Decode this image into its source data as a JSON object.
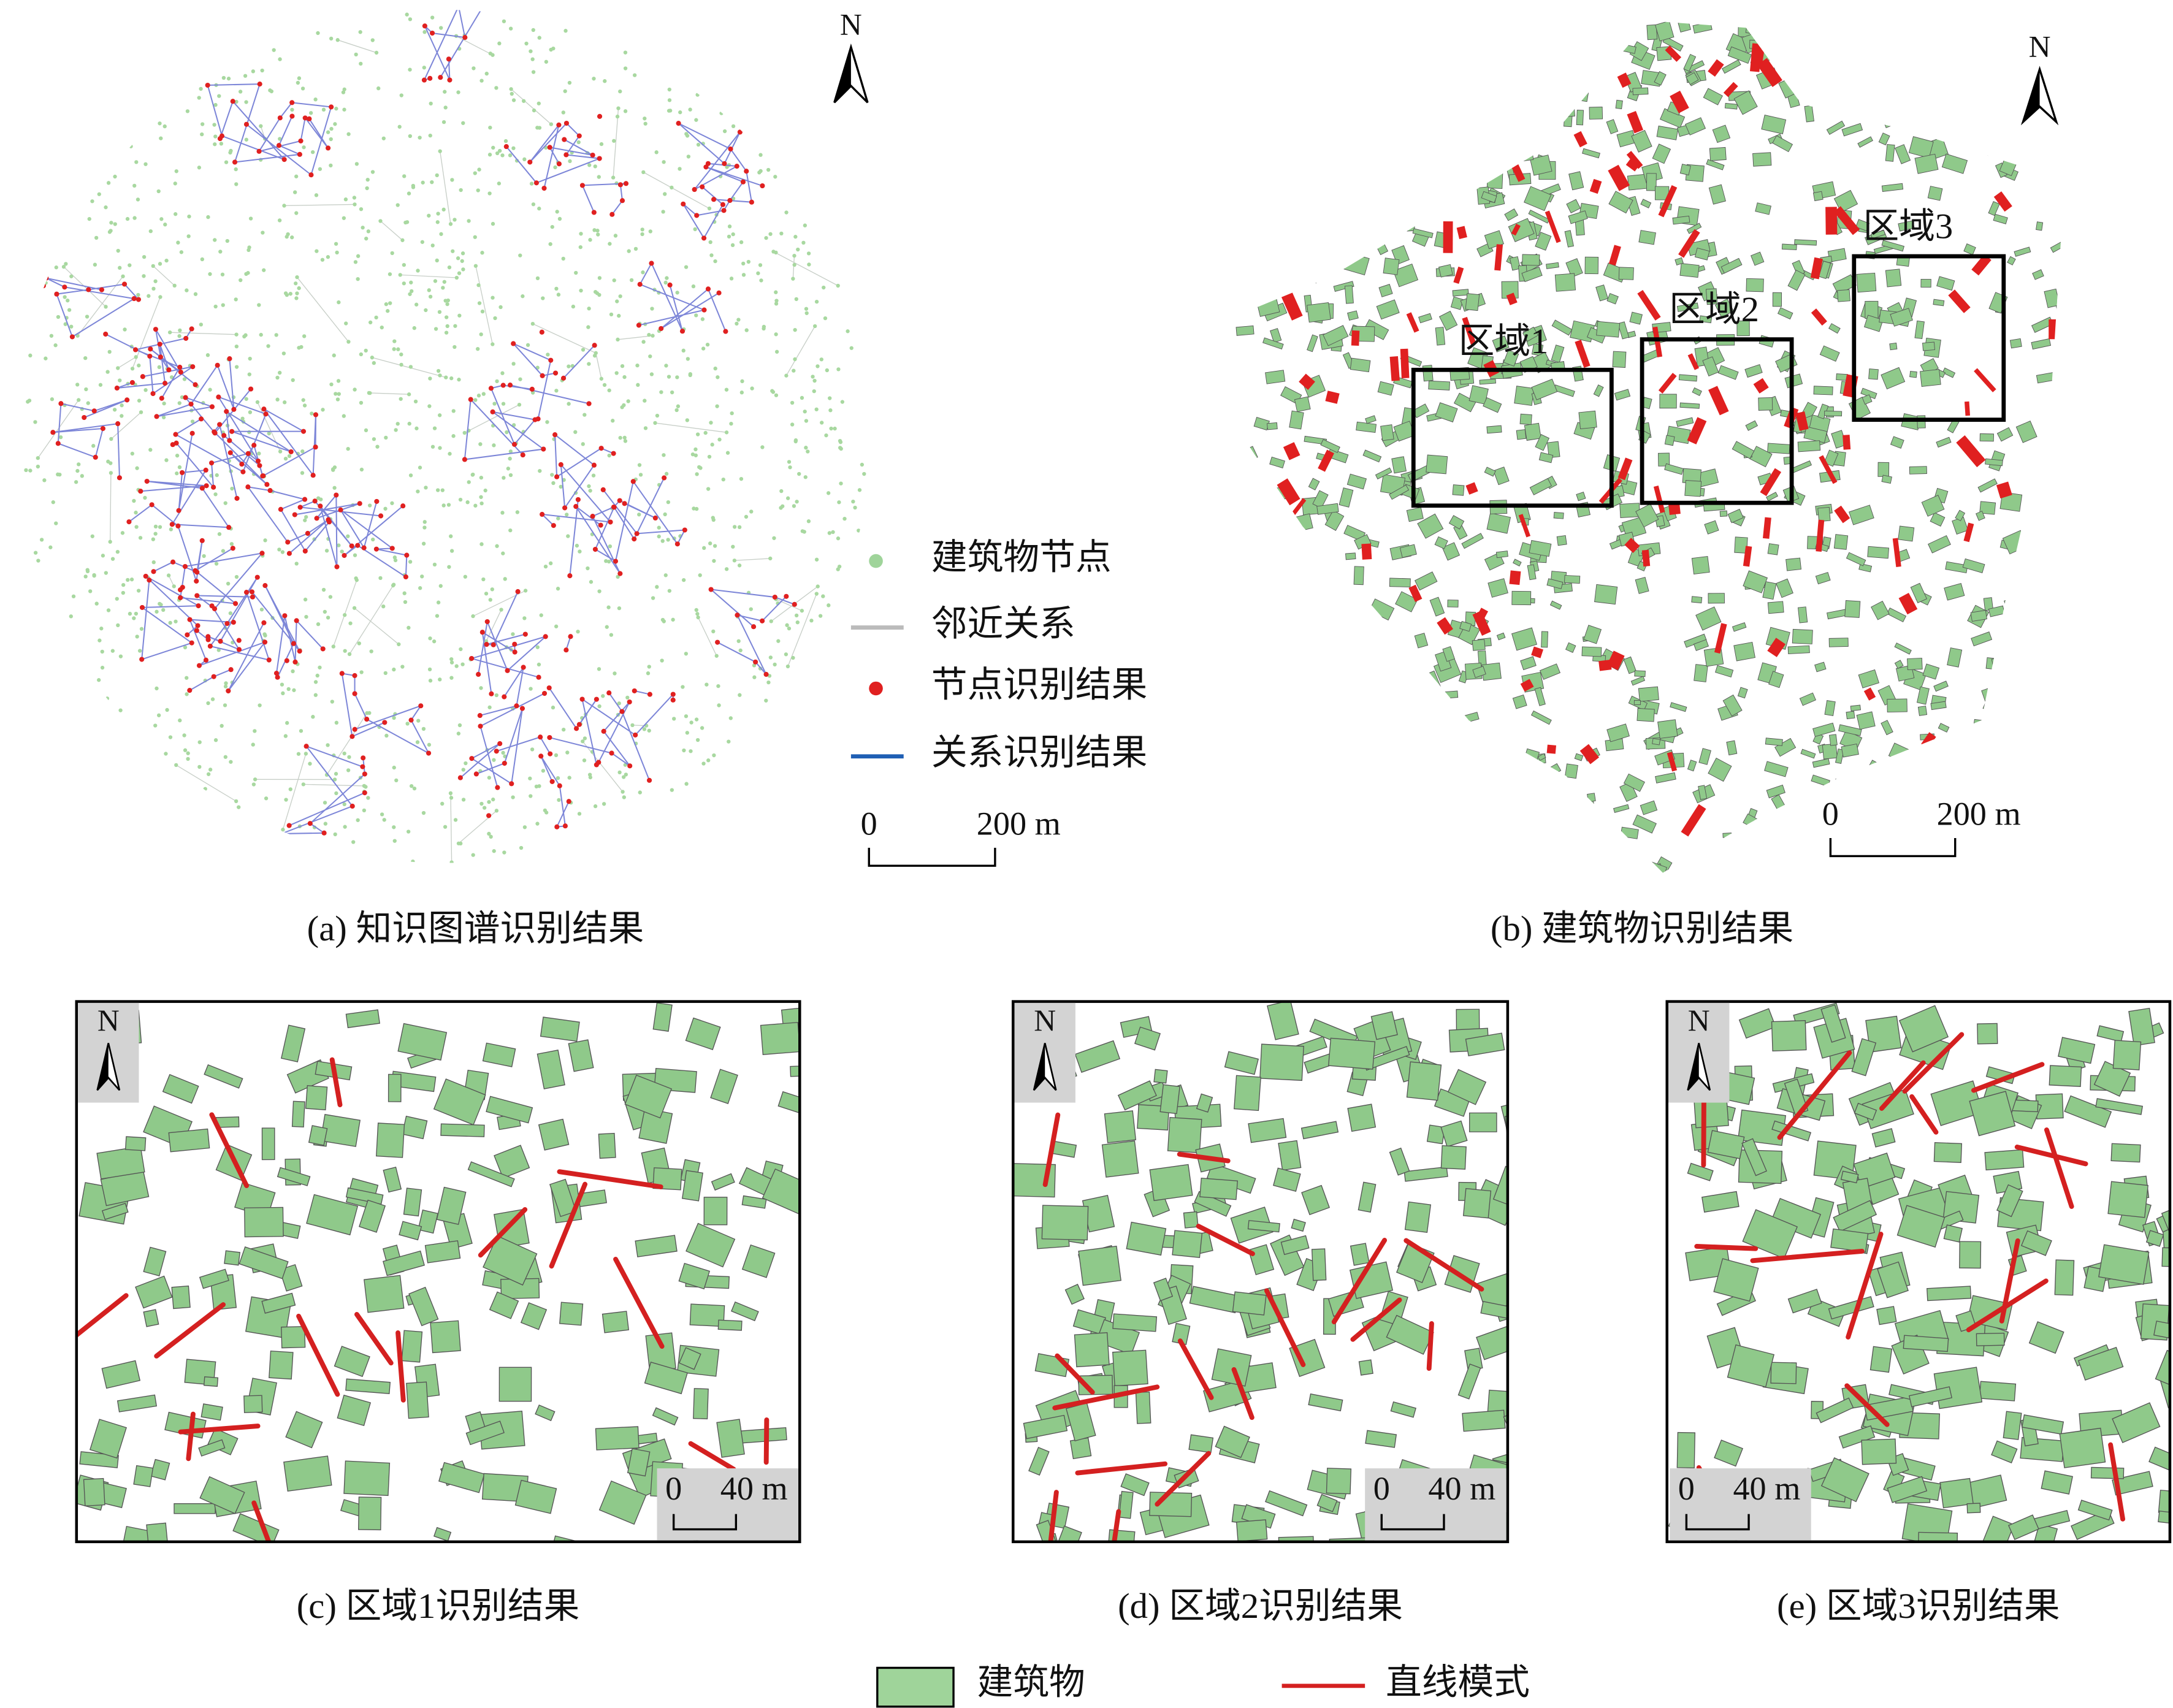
{
  "panels": [
    {
      "caption": "(a) 知识图谱识别结果",
      "north": "N",
      "scale": [
        "0",
        "200 m"
      ],
      "legend": [
        "建筑物节点",
        "邻近关系",
        "节点识别结果",
        "关系识别结果"
      ]
    },
    {
      "caption": "(b) 建筑物识别结果",
      "north": "N",
      "scale": [
        "0",
        "200 m"
      ],
      "regions": [
        "区域1",
        "区域2",
        "区域3"
      ]
    },
    {
      "caption": "(c) 区域1识别结果",
      "north": "N",
      "scale": [
        "0",
        "40 m"
      ]
    },
    {
      "caption": "(d) 区域2识别结果",
      "north": "N",
      "scale": [
        "0",
        "40 m"
      ]
    },
    {
      "caption": "(e) 区域3识别结果",
      "north": "N",
      "scale": [
        "0",
        "40 m"
      ]
    }
  ],
  "legend": [
    "建筑物",
    "直线模式"
  ]
}
